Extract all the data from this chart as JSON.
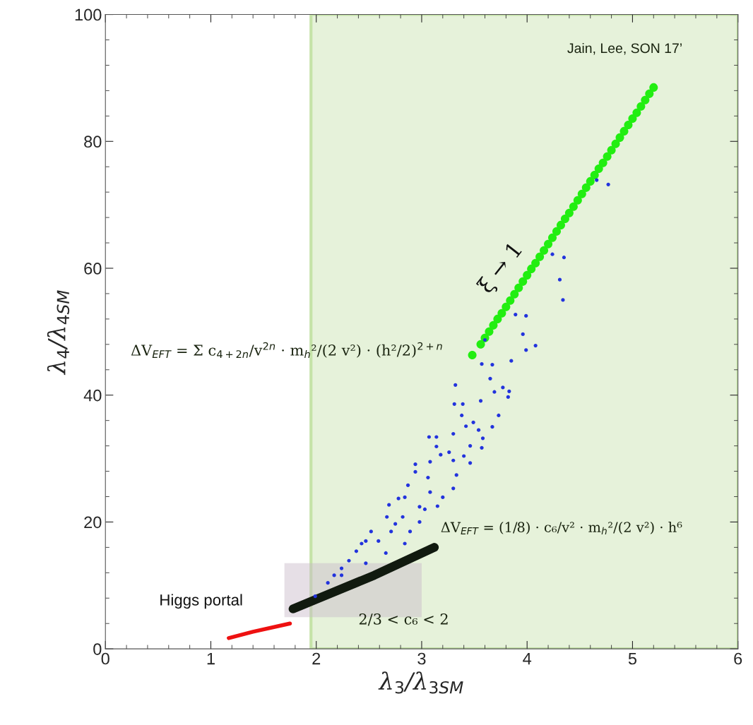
{
  "chart_data": {
    "type": "scatter",
    "xlabel": "λ$_{3}$/λ$_{3SM}$",
    "ylabel": "λ$_{4}$/λ$_{4SM}$",
    "xlim": [
      0,
      6
    ],
    "ylim": [
      0,
      100
    ],
    "xticks": [
      0,
      1,
      2,
      3,
      4,
      5,
      6
    ],
    "yticks": [
      0,
      20,
      40,
      60,
      80,
      100
    ],
    "grid": false,
    "legend": false,
    "marker": "circle",
    "bands": [
      {
        "axis": "x",
        "from": 1.95,
        "to": 6,
        "color": "#e6f2da"
      }
    ],
    "annotations": [
      "Jain, Lee, SON 17’",
      "ΔV$_{EFT}$ = Σ c$_{4+2n}$/v$^{2n}$ · m$_{h}$²/(2 v²) · (h²/2)$^{2+n}$",
      "ΔV$_{EFT}$ = (1/8) · c₆/v² · m$_{h}$²/(2 v²) · h⁶",
      "2/3 < c₆ < 2"
    ],
    "series": [
      {
        "type": "line",
        "marker": "none",
        "name": "Higgs portal",
        "color": "#ee1111",
        "x": [
          1.17,
          1.4,
          1.75
        ],
        "values": [
          1.7,
          2.7,
          4.0
        ]
      },
      {
        "color": "#2233dd",
        "x": [
          3.32,
          3.31,
          3.39,
          3.56,
          3.77,
          3.83,
          3.82,
          3.69,
          3.65,
          3.57,
          3.67,
          3.85,
          3.38,
          3.73,
          3.42,
          3.49,
          3.54,
          3.67,
          3.58,
          3.57,
          3.46,
          3.3,
          3.14,
          3.07,
          3.14,
          3.18,
          3.26,
          3.4,
          3.46,
          3.08,
          2.94,
          3.3,
          3.33,
          3.3,
          3.2,
          3.06,
          2.94,
          2.87,
          3.15,
          3.03,
          2.78,
          2.69,
          2.84,
          2.98,
          2.89,
          2.67,
          2.52,
          2.38,
          2.24,
          2.11,
          1.99,
          2.84,
          2.66,
          2.47,
          2.24,
          2.71,
          2.59,
          2.43,
          2.31,
          2.82,
          2.98,
          3.08,
          2.75,
          2.47,
          2.17,
          4.66,
          4.77,
          4.24,
          4.35,
          4.31,
          4.34,
          3.89,
          3.99,
          3.96,
          4.08,
          3.99,
          3.6
        ],
        "values": [
          41.6,
          38.6,
          38.6,
          39.1,
          41.2,
          40.6,
          39.7,
          40.5,
          42.6,
          44.9,
          44.8,
          45.4,
          36.8,
          36.8,
          35.1,
          35.7,
          34.5,
          35.0,
          33.2,
          31.7,
          32.0,
          33.9,
          33.4,
          33.4,
          31.9,
          30.6,
          31.0,
          30.4,
          29.3,
          29.5,
          29.1,
          29.7,
          27.4,
          25.3,
          23.9,
          27.0,
          27.9,
          25.8,
          22.5,
          22.0,
          23.7,
          22.7,
          23.9,
          20.0,
          18.5,
          20.8,
          18.5,
          15.4,
          12.7,
          10.4,
          8.3,
          16.6,
          15.1,
          13.5,
          11.6,
          18.5,
          17.0,
          16.6,
          13.9,
          20.8,
          22.4,
          24.7,
          19.7,
          17.0,
          11.6,
          73.9,
          73.2,
          62.2,
          61.7,
          58.2,
          55.0,
          52.7,
          52.5,
          49.6,
          47.8,
          47.1,
          48.7
        ]
      },
      {
        "type": "line",
        "marker": "none",
        "color": "#111a0f",
        "x": [
          1.78,
          2.55,
          3.12
        ],
        "values": [
          6.3,
          11.6,
          16.0
        ]
      },
      {
        "name": "ξ → 1",
        "color": "#22ee11",
        "x": [
          3.48,
          3.56,
          3.6,
          3.64,
          3.68,
          3.72,
          3.76,
          3.8,
          3.84,
          3.88,
          3.92,
          3.96,
          4.0,
          4.04,
          4.08,
          4.12,
          4.16,
          4.2,
          4.24,
          4.28,
          4.32,
          4.36,
          4.4,
          4.44,
          4.48,
          4.52,
          4.56,
          4.6,
          4.64,
          4.68,
          4.72,
          4.76,
          4.8,
          4.84,
          4.88,
          4.92,
          4.96,
          5.0,
          5.04,
          5.08,
          5.12,
          5.16,
          5.2
        ],
        "values": [
          46.3,
          48.0,
          49.0,
          50.0,
          51.0,
          52.0,
          52.9,
          53.9,
          54.9,
          55.9,
          56.9,
          57.9,
          58.9,
          59.9,
          60.8,
          61.8,
          62.8,
          63.8,
          64.8,
          65.8,
          66.8,
          67.8,
          68.7,
          69.7,
          70.7,
          71.7,
          72.7,
          73.7,
          74.7,
          75.7,
          76.6,
          77.6,
          78.6,
          79.6,
          80.6,
          81.6,
          82.6,
          83.6,
          84.5,
          85.5,
          86.5,
          87.5,
          88.5
        ]
      }
    ]
  }
}
